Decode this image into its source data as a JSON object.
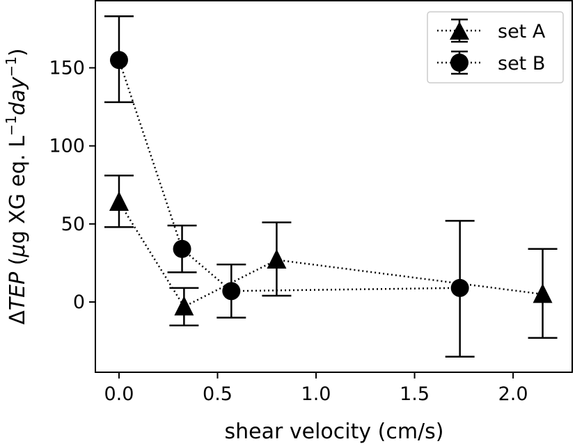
{
  "chart_data": {
    "type": "scatter",
    "title": "",
    "xlabel": "shear velocity (cm/s)",
    "ylabel": {
      "prefix": "Δ",
      "italic_var": "TEP",
      "open": " (",
      "mu": "μ",
      "mid": "g XG eq. L",
      "sup1": "−1",
      "day": "day",
      "sup2": "−1",
      "close": ")"
    },
    "xlim": [
      -0.12,
      2.3
    ],
    "ylim": [
      -45,
      193
    ],
    "xticks": [
      {
        "value": 0.0,
        "label": "0.0"
      },
      {
        "value": 0.5,
        "label": "0.5"
      },
      {
        "value": 1.0,
        "label": "1.0"
      },
      {
        "value": 1.5,
        "label": "1.5"
      },
      {
        "value": 2.0,
        "label": "2.0"
      }
    ],
    "yticks": [
      {
        "value": 0,
        "label": "0"
      },
      {
        "value": 50,
        "label": "50"
      },
      {
        "value": 100,
        "label": "100"
      },
      {
        "value": 150,
        "label": "150"
      }
    ],
    "legend_position": "top-right",
    "series": [
      {
        "name": "set A",
        "marker": "triangle",
        "line_style": "dotted",
        "color": "#000000",
        "points": [
          {
            "x": 0.0,
            "y": 64,
            "err_low": 48,
            "err_high": 81
          },
          {
            "x": 0.33,
            "y": -3,
            "err_low": -15,
            "err_high": 9
          },
          {
            "x": 0.8,
            "y": 27,
            "err_low": 4,
            "err_high": 51
          },
          {
            "x": 2.15,
            "y": 5,
            "err_low": -23,
            "err_high": 34
          }
        ]
      },
      {
        "name": "set B",
        "marker": "circle",
        "line_style": "dotted",
        "color": "#000000",
        "points": [
          {
            "x": 0.0,
            "y": 155,
            "err_low": 128,
            "err_high": 183
          },
          {
            "x": 0.32,
            "y": 34,
            "err_low": 19,
            "err_high": 49
          },
          {
            "x": 0.57,
            "y": 7,
            "err_low": -10,
            "err_high": 24
          },
          {
            "x": 1.73,
            "y": 9,
            "err_low": -35,
            "err_high": 52
          }
        ]
      }
    ]
  }
}
